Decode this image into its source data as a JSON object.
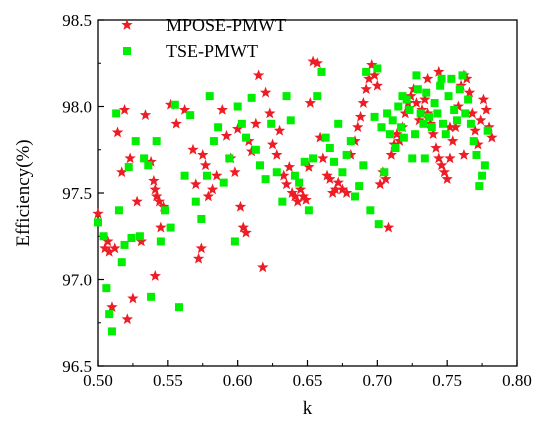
{
  "chart_data": {
    "type": "scatter",
    "title": "",
    "xlabel": "k",
    "ylabel": "Efficiency(%)",
    "xlim": [
      0.5,
      0.8
    ],
    "ylim": [
      96.5,
      98.5
    ],
    "x_ticks": [
      "0.50",
      "0.55",
      "0.60",
      "0.65",
      "0.70",
      "0.75",
      "0.80"
    ],
    "y_ticks": [
      "96.5",
      "97.0",
      "97.5",
      "98.0",
      "98.5"
    ],
    "grid": false,
    "legend_position": "top",
    "series": [
      {
        "name": "MPOSE-PMWT",
        "marker": "star",
        "color": "#ee1c24",
        "points": [
          [
            0.5,
            97.38
          ],
          [
            0.505,
            97.18
          ],
          [
            0.507,
            97.22
          ],
          [
            0.508,
            97.16
          ],
          [
            0.51,
            96.84
          ],
          [
            0.512,
            97.18
          ],
          [
            0.514,
            97.85
          ],
          [
            0.517,
            97.62
          ],
          [
            0.519,
            97.98
          ],
          [
            0.521,
            96.77
          ],
          [
            0.523,
            97.7
          ],
          [
            0.525,
            96.89
          ],
          [
            0.528,
            97.45
          ],
          [
            0.531,
            97.22
          ],
          [
            0.534,
            97.95
          ],
          [
            0.538,
            97.68
          ],
          [
            0.54,
            97.57
          ],
          [
            0.541,
            97.52
          ],
          [
            0.542,
            97.48
          ],
          [
            0.544,
            97.45
          ],
          [
            0.545,
            97.3
          ],
          [
            0.547,
            97.42
          ],
          [
            0.541,
            97.02
          ],
          [
            0.552,
            98.01
          ],
          [
            0.556,
            97.9
          ],
          [
            0.562,
            97.98
          ],
          [
            0.568,
            97.75
          ],
          [
            0.57,
            97.55
          ],
          [
            0.572,
            97.12
          ],
          [
            0.574,
            97.18
          ],
          [
            0.575,
            97.72
          ],
          [
            0.577,
            97.66
          ],
          [
            0.579,
            97.48
          ],
          [
            0.582,
            97.52
          ],
          [
            0.585,
            97.6
          ],
          [
            0.589,
            97.98
          ],
          [
            0.592,
            97.83
          ],
          [
            0.595,
            97.7
          ],
          [
            0.598,
            97.62
          ],
          [
            0.6,
            97.87
          ],
          [
            0.602,
            97.42
          ],
          [
            0.604,
            97.3
          ],
          [
            0.606,
            97.27
          ],
          [
            0.608,
            97.8
          ],
          [
            0.61,
            97.74
          ],
          [
            0.613,
            97.9
          ],
          [
            0.615,
            98.18
          ],
          [
            0.618,
            97.07
          ],
          [
            0.62,
            98.08
          ],
          [
            0.623,
            97.96
          ],
          [
            0.625,
            97.78
          ],
          [
            0.628,
            97.72
          ],
          [
            0.63,
            97.86
          ],
          [
            0.633,
            97.6
          ],
          [
            0.635,
            97.55
          ],
          [
            0.637,
            97.65
          ],
          [
            0.639,
            97.5
          ],
          [
            0.641,
            97.48
          ],
          [
            0.643,
            97.45
          ],
          [
            0.645,
            97.52
          ],
          [
            0.647,
            97.48
          ],
          [
            0.649,
            97.46
          ],
          [
            0.651,
            97.65
          ],
          [
            0.652,
            98.02
          ],
          [
            0.654,
            98.26
          ],
          [
            0.657,
            98.25
          ],
          [
            0.659,
            97.82
          ],
          [
            0.661,
            97.7
          ],
          [
            0.664,
            97.6
          ],
          [
            0.666,
            97.58
          ],
          [
            0.668,
            97.5
          ],
          [
            0.67,
            97.52
          ],
          [
            0.672,
            97.56
          ],
          [
            0.675,
            97.52
          ],
          [
            0.678,
            97.5
          ],
          [
            0.681,
            97.72
          ],
          [
            0.684,
            97.8
          ],
          [
            0.686,
            97.88
          ],
          [
            0.688,
            97.94
          ],
          [
            0.69,
            98.02
          ],
          [
            0.692,
            98.1
          ],
          [
            0.694,
            98.16
          ],
          [
            0.696,
            98.24
          ],
          [
            0.698,
            98.18
          ],
          [
            0.7,
            98.12
          ],
          [
            0.702,
            97.55
          ],
          [
            0.704,
            97.62
          ],
          [
            0.706,
            97.58
          ],
          [
            0.708,
            97.3
          ],
          [
            0.71,
            97.72
          ],
          [
            0.712,
            97.78
          ],
          [
            0.714,
            97.84
          ],
          [
            0.716,
            97.8
          ],
          [
            0.718,
            97.88
          ],
          [
            0.72,
            97.96
          ],
          [
            0.722,
            98.02
          ],
          [
            0.724,
            98.06
          ],
          [
            0.726,
            98.1
          ],
          [
            0.728,
            98.02
          ],
          [
            0.73,
            97.92
          ],
          [
            0.732,
            97.98
          ],
          [
            0.734,
            98.04
          ],
          [
            0.736,
            97.96
          ],
          [
            0.738,
            97.9
          ],
          [
            0.74,
            97.84
          ],
          [
            0.742,
            97.76
          ],
          [
            0.744,
            97.7
          ],
          [
            0.746,
            97.66
          ],
          [
            0.748,
            97.62
          ],
          [
            0.75,
            97.58
          ],
          [
            0.752,
            97.7
          ],
          [
            0.754,
            97.8
          ],
          [
            0.756,
            97.88
          ],
          [
            0.758,
            98.0
          ],
          [
            0.76,
            98.12
          ],
          [
            0.762,
            98.18
          ],
          [
            0.764,
            98.16
          ],
          [
            0.766,
            98.08
          ],
          [
            0.768,
            97.96
          ],
          [
            0.77,
            97.86
          ],
          [
            0.772,
            97.78
          ],
          [
            0.774,
            97.92
          ],
          [
            0.776,
            98.04
          ],
          [
            0.778,
            97.98
          ],
          [
            0.78,
            97.88
          ],
          [
            0.782,
            97.82
          ],
          [
            0.744,
            98.2
          ],
          [
            0.736,
            98.16
          ],
          [
            0.752,
            97.88
          ],
          [
            0.762,
            97.72
          ]
        ]
      },
      {
        "name": "TSE-PMWT",
        "marker": "square",
        "color": "#00ee00",
        "points": [
          [
            0.5,
            97.33
          ],
          [
            0.504,
            97.25
          ],
          [
            0.506,
            96.95
          ],
          [
            0.508,
            96.8
          ],
          [
            0.51,
            96.7
          ],
          [
            0.513,
            97.96
          ],
          [
            0.515,
            97.4
          ],
          [
            0.517,
            97.1
          ],
          [
            0.519,
            97.2
          ],
          [
            0.522,
            97.65
          ],
          [
            0.524,
            97.24
          ],
          [
            0.527,
            97.8
          ],
          [
            0.53,
            97.25
          ],
          [
            0.533,
            97.7
          ],
          [
            0.536,
            97.66
          ],
          [
            0.538,
            96.9
          ],
          [
            0.542,
            97.8
          ],
          [
            0.545,
            97.22
          ],
          [
            0.548,
            97.4
          ],
          [
            0.552,
            97.3
          ],
          [
            0.555,
            98.01
          ],
          [
            0.558,
            96.84
          ],
          [
            0.562,
            97.6
          ],
          [
            0.566,
            97.95
          ],
          [
            0.57,
            97.45
          ],
          [
            0.574,
            97.35
          ],
          [
            0.578,
            97.6
          ],
          [
            0.58,
            98.06
          ],
          [
            0.583,
            97.8
          ],
          [
            0.586,
            97.88
          ],
          [
            0.59,
            97.56
          ],
          [
            0.594,
            97.7
          ],
          [
            0.598,
            97.22
          ],
          [
            0.6,
            98.0
          ],
          [
            0.603,
            97.9
          ],
          [
            0.606,
            97.82
          ],
          [
            0.61,
            98.05
          ],
          [
            0.613,
            97.75
          ],
          [
            0.616,
            97.66
          ],
          [
            0.62,
            97.58
          ],
          [
            0.624,
            97.9
          ],
          [
            0.628,
            97.62
          ],
          [
            0.632,
            97.45
          ],
          [
            0.635,
            98.06
          ],
          [
            0.638,
            97.92
          ],
          [
            0.641,
            97.6
          ],
          [
            0.644,
            97.56
          ],
          [
            0.648,
            97.68
          ],
          [
            0.651,
            97.4
          ],
          [
            0.654,
            97.7
          ],
          [
            0.657,
            98.06
          ],
          [
            0.66,
            98.2
          ],
          [
            0.663,
            97.82
          ],
          [
            0.666,
            97.76
          ],
          [
            0.669,
            97.68
          ],
          [
            0.672,
            97.9
          ],
          [
            0.675,
            97.62
          ],
          [
            0.678,
            97.72
          ],
          [
            0.681,
            97.8
          ],
          [
            0.684,
            97.48
          ],
          [
            0.687,
            97.54
          ],
          [
            0.69,
            97.66
          ],
          [
            0.692,
            98.2
          ],
          [
            0.695,
            97.4
          ],
          [
            0.698,
            97.94
          ],
          [
            0.7,
            98.22
          ],
          [
            0.701,
            97.32
          ],
          [
            0.703,
            97.88
          ],
          [
            0.705,
            97.62
          ],
          [
            0.707,
            97.96
          ],
          [
            0.709,
            97.84
          ],
          [
            0.711,
            97.92
          ],
          [
            0.713,
            97.76
          ],
          [
            0.715,
            98.0
          ],
          [
            0.717,
            97.88
          ],
          [
            0.719,
            97.82
          ],
          [
            0.721,
            98.04
          ],
          [
            0.723,
            97.98
          ],
          [
            0.725,
            97.7
          ],
          [
            0.727,
            97.84
          ],
          [
            0.729,
            98.1
          ],
          [
            0.731,
            97.96
          ],
          [
            0.733,
            97.9
          ],
          [
            0.735,
            98.08
          ],
          [
            0.737,
            97.94
          ],
          [
            0.739,
            97.88
          ],
          [
            0.741,
            98.02
          ],
          [
            0.743,
            97.96
          ],
          [
            0.745,
            98.12
          ],
          [
            0.747,
            97.9
          ],
          [
            0.749,
            97.84
          ],
          [
            0.751,
            98.06
          ],
          [
            0.753,
            98.16
          ],
          [
            0.755,
            97.98
          ],
          [
            0.757,
            97.92
          ],
          [
            0.759,
            98.1
          ],
          [
            0.761,
            98.18
          ],
          [
            0.763,
            97.96
          ],
          [
            0.765,
            98.04
          ],
          [
            0.767,
            97.9
          ],
          [
            0.769,
            97.8
          ],
          [
            0.771,
            97.72
          ],
          [
            0.773,
            97.54
          ],
          [
            0.775,
            97.6
          ],
          [
            0.777,
            97.66
          ],
          [
            0.779,
            97.86
          ],
          [
            0.746,
            98.16
          ],
          [
            0.728,
            98.18
          ],
          [
            0.718,
            98.06
          ],
          [
            0.734,
            97.7
          ]
        ]
      }
    ]
  }
}
